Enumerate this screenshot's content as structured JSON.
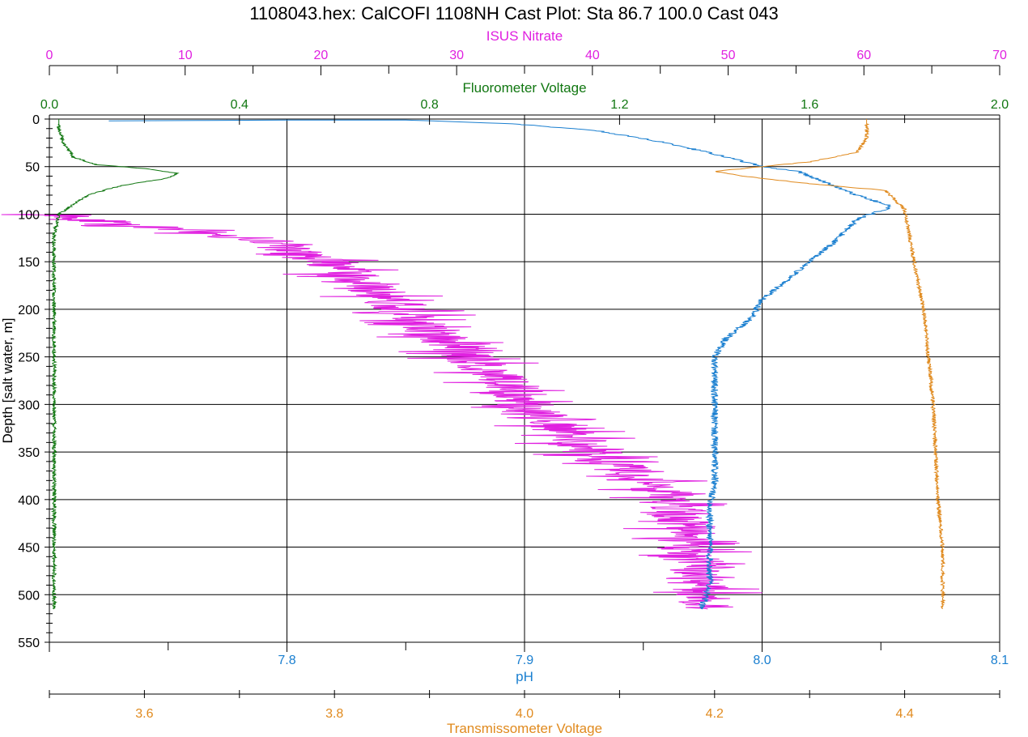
{
  "chart_data": {
    "type": "line",
    "title": "1108043.hex: CalCOFI 1108NH Cast Plot: Sta 86.7 100.0  Cast 043",
    "grid": true,
    "y_axis": {
      "label": "Depth [salt water, m]",
      "range": [
        0,
        550
      ],
      "inverted": true,
      "ticks": [
        "0",
        "50",
        "100",
        "150",
        "200",
        "250",
        "300",
        "350",
        "400",
        "450",
        "500",
        "550"
      ]
    },
    "x_axes": [
      {
        "key": "nitrate",
        "label": "ISUS Nitrate",
        "position": "top",
        "color": "#e020e0",
        "range": [
          0,
          70
        ],
        "ticks": [
          "0",
          "10",
          "20",
          "30",
          "40",
          "50",
          "60",
          "70"
        ]
      },
      {
        "key": "fluor",
        "label": "Fluorometer Voltage",
        "position": "top",
        "color": "#117711",
        "range": [
          0.0,
          2.0
        ],
        "ticks": [
          "0.0",
          "0.4",
          "0.8",
          "1.2",
          "1.6",
          "2.0"
        ]
      },
      {
        "key": "ph",
        "label": "pH",
        "position": "bottom",
        "color": "#1a7fd0",
        "range": [
          7.7,
          8.1
        ],
        "ticks": [
          "7.8",
          "7.9",
          "8.0",
          "8.1"
        ]
      },
      {
        "key": "trans",
        "label": "Transmissometer Voltage",
        "position": "bottom",
        "color": "#e08a1e",
        "range": [
          3.5,
          4.5
        ],
        "ticks": [
          "3.6",
          "3.8",
          "4.0",
          "4.2",
          "4.4"
        ]
      }
    ],
    "series": [
      {
        "name": "ISUS Nitrate",
        "axis": "nitrate",
        "color": "#e020e0",
        "noise": 2.2,
        "start_depth": 100,
        "points": [
          [
            0.5,
            100
          ],
          [
            5,
            110
          ],
          [
            12,
            120
          ],
          [
            17,
            130
          ],
          [
            18,
            140
          ],
          [
            20,
            150
          ],
          [
            23,
            170
          ],
          [
            25,
            190
          ],
          [
            27,
            210
          ],
          [
            29,
            230
          ],
          [
            32,
            260
          ],
          [
            34,
            280
          ],
          [
            35,
            300
          ],
          [
            37,
            320
          ],
          [
            39,
            340
          ],
          [
            41,
            360
          ],
          [
            44,
            380
          ],
          [
            46,
            400
          ],
          [
            47,
            430
          ],
          [
            47.5,
            460
          ],
          [
            48,
            490
          ],
          [
            48.5,
            515
          ]
        ]
      },
      {
        "name": "Fluorometer Voltage",
        "axis": "fluor",
        "color": "#117711",
        "noise": 0.004,
        "start_depth": 0,
        "points": [
          [
            0.02,
            0
          ],
          [
            0.02,
            10
          ],
          [
            0.03,
            25
          ],
          [
            0.05,
            40
          ],
          [
            0.1,
            48
          ],
          [
            0.2,
            52
          ],
          [
            0.27,
            57
          ],
          [
            0.25,
            62
          ],
          [
            0.15,
            70
          ],
          [
            0.08,
            80
          ],
          [
            0.05,
            90
          ],
          [
            0.02,
            100
          ],
          [
            0.01,
            120
          ],
          [
            0.01,
            200
          ],
          [
            0.01,
            300
          ],
          [
            0.01,
            400
          ],
          [
            0.01,
            515
          ]
        ]
      },
      {
        "name": "pH",
        "axis": "ph",
        "color": "#1a7fd0",
        "noise": 0.0015,
        "start_depth": 0,
        "points": [
          [
            7.725,
            2
          ],
          [
            7.8,
            1
          ],
          [
            7.85,
            1
          ],
          [
            7.895,
            5
          ],
          [
            7.93,
            12
          ],
          [
            7.96,
            25
          ],
          [
            7.985,
            40
          ],
          [
            8.0,
            50
          ],
          [
            8.015,
            55
          ],
          [
            8.025,
            65
          ],
          [
            8.04,
            80
          ],
          [
            8.055,
            92
          ],
          [
            8.04,
            105
          ],
          [
            8.03,
            130
          ],
          [
            8.02,
            150
          ],
          [
            8.01,
            170
          ],
          [
            8.0,
            190
          ],
          [
            7.995,
            210
          ],
          [
            7.985,
            230
          ],
          [
            7.98,
            250
          ],
          [
            7.98,
            270
          ],
          [
            7.98,
            290
          ],
          [
            7.98,
            320
          ],
          [
            7.98,
            360
          ],
          [
            7.98,
            380
          ],
          [
            7.978,
            410
          ],
          [
            7.978,
            450
          ],
          [
            7.978,
            490
          ],
          [
            7.975,
            510
          ],
          [
            7.975,
            515
          ]
        ]
      },
      {
        "name": "Transmissometer Voltage",
        "axis": "trans",
        "color": "#e08a1e",
        "noise": 0.002,
        "start_depth": 0,
        "points": [
          [
            4.36,
            0
          ],
          [
            4.36,
            20
          ],
          [
            4.35,
            35
          ],
          [
            4.3,
            45
          ],
          [
            4.25,
            50
          ],
          [
            4.2,
            55
          ],
          [
            4.23,
            60
          ],
          [
            4.3,
            68
          ],
          [
            4.38,
            75
          ],
          [
            4.4,
            95
          ],
          [
            4.41,
            150
          ],
          [
            4.42,
            200
          ],
          [
            4.425,
            250
          ],
          [
            4.43,
            300
          ],
          [
            4.435,
            400
          ],
          [
            4.44,
            450
          ],
          [
            4.44,
            515
          ]
        ]
      }
    ]
  }
}
